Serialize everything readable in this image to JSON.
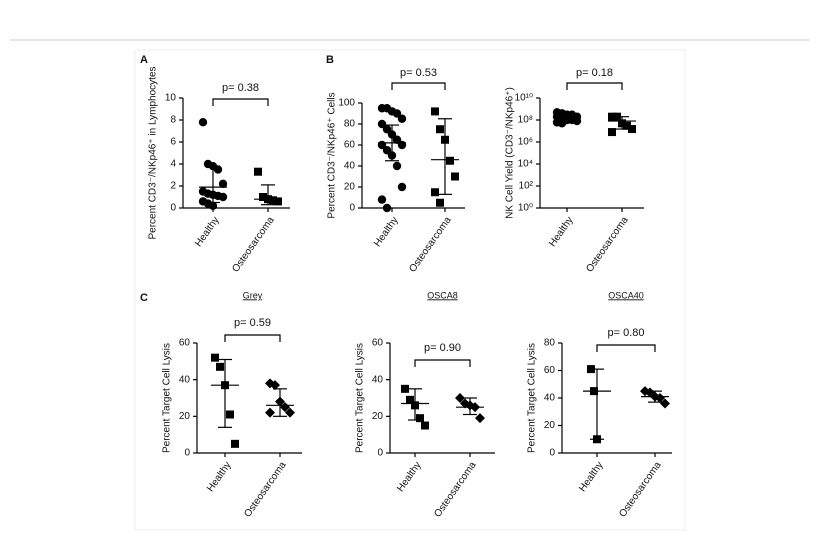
{
  "panel_labels": [
    "A",
    "B",
    "C"
  ],
  "chart_data": [
    {
      "type": "dot",
      "ylabel": "Percent CD3⁻/NKp46⁺ in Lymphocytes",
      "annotation": "p= 0.38",
      "ylim": [
        0,
        10
      ],
      "yticks": [
        0,
        2,
        4,
        6,
        8,
        10
      ],
      "groups": [
        {
          "name": "Healthy",
          "marker": "circle",
          "values": [
            7.8,
            4,
            3.8,
            3.5,
            2.2,
            1.5,
            1.3,
            1.2,
            1.1,
            1.0,
            0.6,
            0.4,
            0.2
          ],
          "center": 1.9,
          "upper": 3.8,
          "lower": 0.5
        },
        {
          "name": "Osteosarcoma",
          "marker": "square",
          "values": [
            3.3,
            1.0,
            0.8,
            0.7,
            0.6
          ],
          "center": 0.8,
          "upper": 2.1,
          "lower": 0.3
        }
      ]
    },
    {
      "type": "dot",
      "ylabel": "Percent CD3⁻/NKp46⁺ Cells",
      "annotation": "p= 0.53",
      "ylim": [
        0,
        100
      ],
      "yticks": [
        0,
        20,
        40,
        60,
        80,
        100
      ],
      "groups": [
        {
          "name": "Healthy",
          "marker": "circle",
          "values": [
            95,
            95,
            92,
            90,
            85,
            80,
            75,
            70,
            65,
            60,
            60,
            55,
            50,
            40,
            20,
            8,
            0
          ],
          "center": 62,
          "upper": 79,
          "lower": 45
        },
        {
          "name": "Osteosarcoma",
          "marker": "square",
          "values": [
            92,
            75,
            65,
            45,
            30,
            15,
            5
          ],
          "center": 46,
          "upper": 85,
          "lower": 13
        }
      ]
    },
    {
      "type": "dot",
      "ylabel": "NK Cell Yield (CD3⁻/NKp46⁺)",
      "annotation": "p= 0.18",
      "log_y": true,
      "ylim": [
        1,
        10000000000
      ],
      "yticks": [
        {
          "value": 1,
          "label": "10⁰"
        },
        {
          "value": 100,
          "label": "10²"
        },
        {
          "value": 10000,
          "label": "10⁴"
        },
        {
          "value": 1000000,
          "label": "10⁶"
        },
        {
          "value": 100000000,
          "label": "10⁸"
        },
        {
          "value": 10000000000,
          "label": "10¹⁰"
        }
      ],
      "groups": [
        {
          "name": "Healthy",
          "marker": "circle",
          "values": [
            500000000,
            400000000,
            300000000,
            300000000,
            200000000,
            200000000,
            150000000,
            100000000,
            100000000,
            80000000,
            60000000,
            50000000
          ],
          "center": 200000000,
          "upper": 500000000,
          "lower": 80000000
        },
        {
          "name": "Osteosarcoma",
          "marker": "square",
          "values": [
            200000000,
            200000000,
            50000000,
            30000000,
            15000000,
            8000000
          ],
          "center": 80000000,
          "upper": 200000000,
          "lower": 15000000
        }
      ]
    },
    {
      "type": "dot",
      "title": "Grey",
      "ylabel": "Percent Target Cell Lysis",
      "annotation": "p= 0.59",
      "ylim": [
        0,
        60
      ],
      "yticks": [
        0,
        20,
        40,
        60
      ],
      "groups": [
        {
          "name": "Healthy",
          "marker": "square",
          "values": [
            52,
            47,
            37,
            21,
            5
          ],
          "center": 37,
          "upper": 51,
          "lower": 14
        },
        {
          "name": "Osteosarcoma",
          "marker": "diamond",
          "values": [
            38,
            37,
            28,
            25,
            22,
            22
          ],
          "center": 26,
          "upper": 35,
          "lower": 20
        }
      ]
    },
    {
      "type": "dot",
      "title": "OSCA8",
      "ylabel": "Percent Target Cell Lysis",
      "annotation": "p= 0.90",
      "ylim": [
        0,
        60
      ],
      "yticks": [
        0,
        20,
        40,
        60
      ],
      "groups": [
        {
          "name": "Healthy",
          "marker": "square",
          "values": [
            35,
            29,
            26,
            19,
            15
          ],
          "center": 27,
          "upper": 35,
          "lower": 18
        },
        {
          "name": "Osteosarcoma",
          "marker": "diamond",
          "values": [
            30,
            27,
            26,
            25,
            19
          ],
          "center": 25,
          "upper": 30,
          "lower": 21
        }
      ]
    },
    {
      "type": "dot",
      "title": "OSCA40",
      "ylabel": "Percent Target Cell Lysis",
      "annotation": "p= 0.80",
      "ylim": [
        0,
        80
      ],
      "yticks": [
        0,
        20,
        40,
        60,
        80
      ],
      "groups": [
        {
          "name": "Healthy",
          "marker": "square",
          "values": [
            61,
            45,
            10
          ],
          "center": 45,
          "upper": 61,
          "lower": 10
        },
        {
          "name": "Osteosarcoma",
          "marker": "diamond",
          "values": [
            45,
            44,
            41,
            40,
            36
          ],
          "center": 41,
          "upper": 45,
          "lower": 37
        }
      ]
    }
  ]
}
